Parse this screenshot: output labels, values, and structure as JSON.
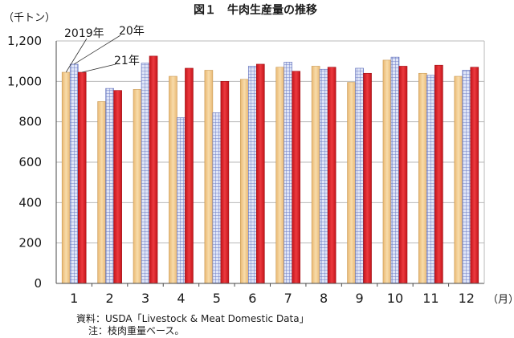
{
  "chart_data": {
    "type": "bar",
    "title": "図１　牛肉生産量の推移",
    "ylabel": "（千トン）",
    "xlabel": "（月）",
    "ylim": [
      0,
      1200
    ],
    "yticks": [
      "0",
      "200",
      "400",
      "600",
      "800",
      "1,000",
      "1,200"
    ],
    "categories": [
      "1",
      "2",
      "3",
      "4",
      "5",
      "6",
      "7",
      "8",
      "9",
      "10",
      "11",
      "12"
    ],
    "series": [
      {
        "name": "2019年",
        "values": [
          1045,
          900,
          960,
          1025,
          1055,
          1010,
          1070,
          1075,
          995,
          1105,
          1040,
          1025
        ]
      },
      {
        "name": "20年",
        "values": [
          1085,
          965,
          1090,
          820,
          845,
          1075,
          1095,
          1060,
          1065,
          1120,
          1030,
          1055
        ]
      },
      {
        "name": "21年",
        "values": [
          1045,
          955,
          1125,
          1065,
          1000,
          1085,
          1050,
          1070,
          1040,
          1075,
          1080,
          1070
        ]
      }
    ],
    "colors": {
      "2019年": "#f0c888",
      "20年": "#8c9cd6",
      "21年": "#e01d23"
    },
    "grid": true,
    "legend": "callout labels above month 1 bars"
  },
  "notes": {
    "source": "資料：USDA「Livestock & Meat Domestic Data」",
    "note": "注：枝肉重量ベース。"
  }
}
